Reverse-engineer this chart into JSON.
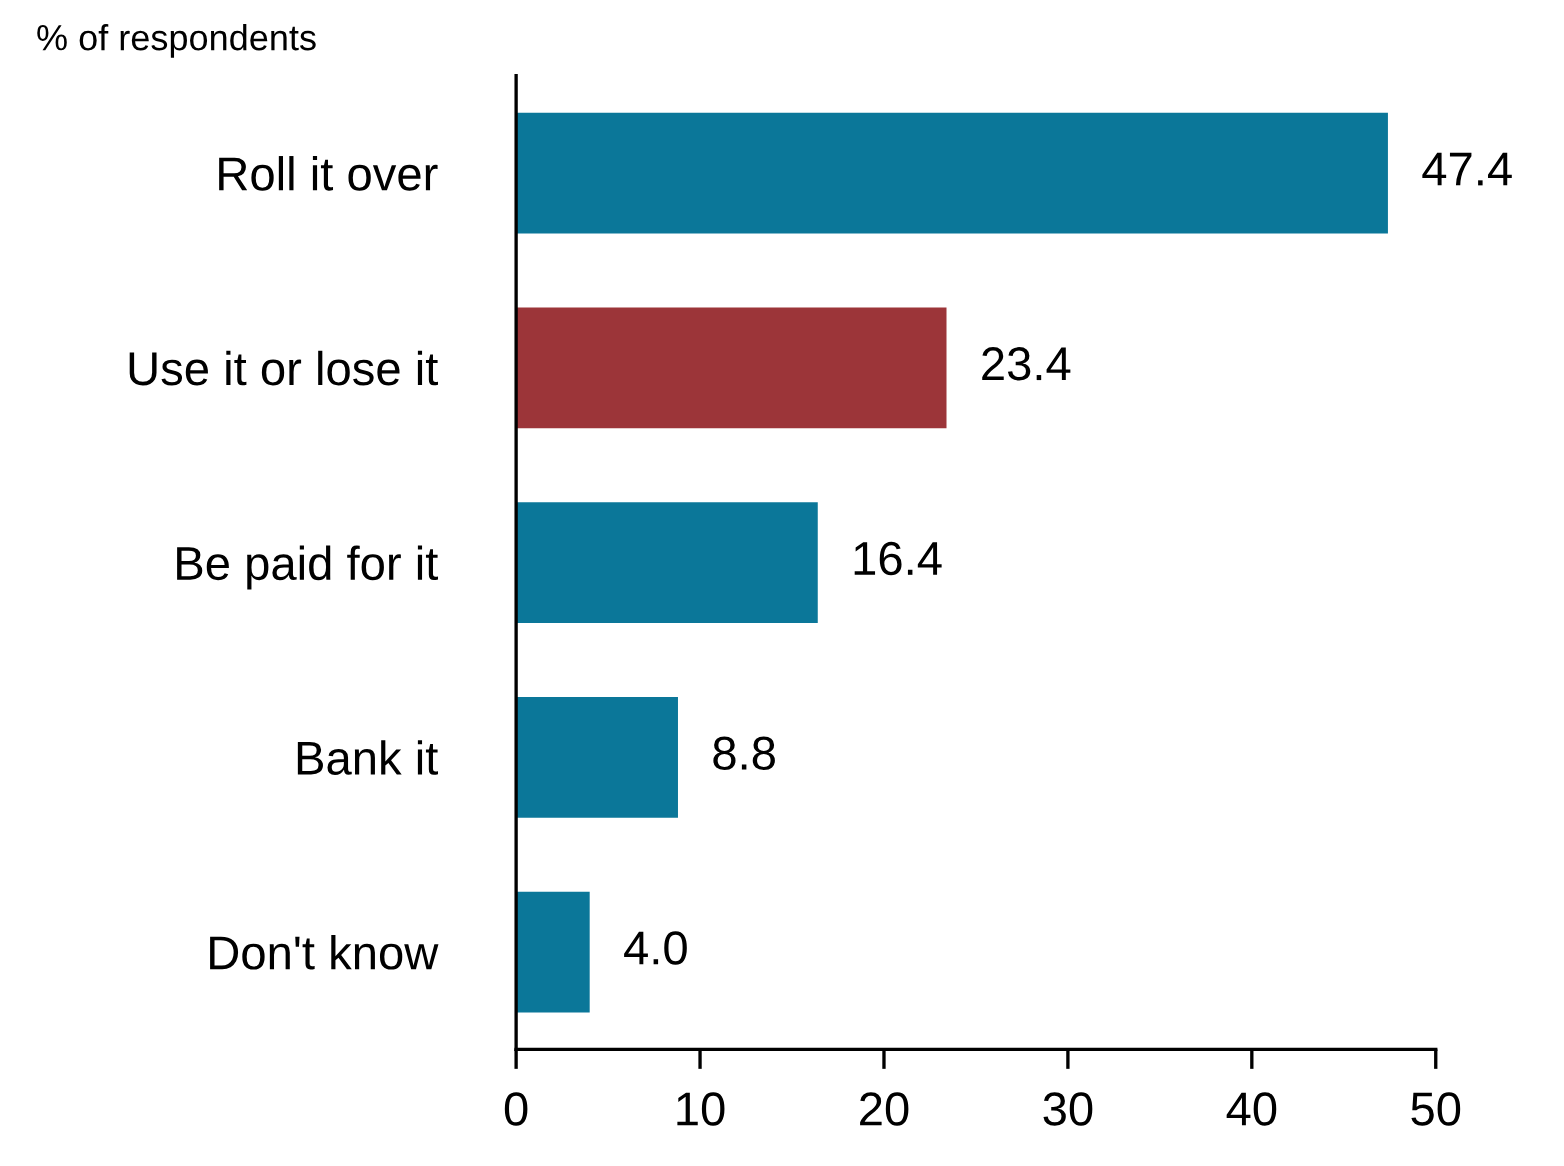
{
  "chart_data": {
    "type": "bar",
    "orientation": "horizontal",
    "title": "% of respondents",
    "categories": [
      "Roll it over",
      "Use it or lose it",
      "Be paid for it",
      "Bank it",
      "Don't know"
    ],
    "values": [
      47.4,
      23.4,
      16.4,
      8.8,
      4.0
    ],
    "colors": [
      "#0b7799",
      "#9c3539",
      "#0b7799",
      "#0b7799",
      "#0b7799"
    ],
    "value_labels": [
      "47.4",
      "23.4",
      "16.4",
      "8.8",
      "4.0"
    ],
    "xlim": [
      0,
      50
    ],
    "xticks": [
      0,
      10,
      20,
      30,
      40,
      50
    ],
    "grid": false,
    "legend": false
  }
}
